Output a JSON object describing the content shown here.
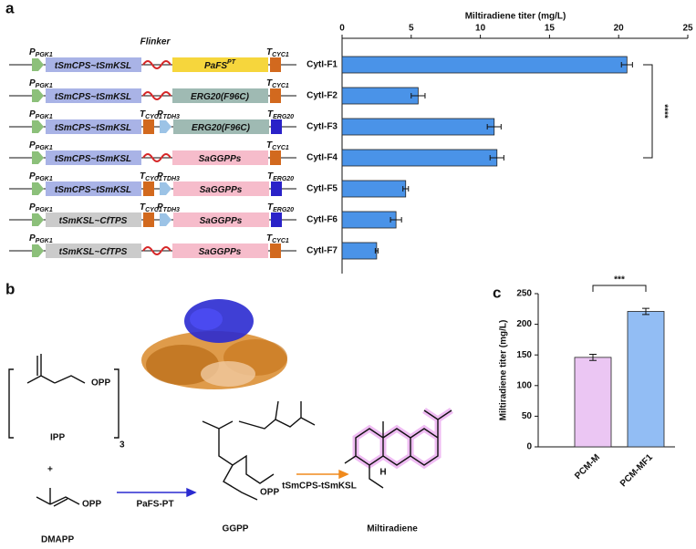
{
  "panels": {
    "a": "a",
    "b": "b",
    "c": "c"
  },
  "constructs": {
    "flinker": "Flinker",
    "rows": [
      [
        {
          "type": "promoter",
          "label": "P",
          "sub": "PGK1",
          "color": "#8cc07a"
        },
        {
          "type": "gene",
          "label": "tSmCPS~tSmKSL",
          "color": "#a9b3e6"
        },
        {
          "type": "linker",
          "color": "#d62728"
        },
        {
          "type": "gene",
          "label": "PaFS",
          "sup": "PT",
          "color": "#f6d63c"
        },
        {
          "type": "terminator",
          "label": "T",
          "sub": "CYC1",
          "color": "#d2691e"
        }
      ],
      [
        {
          "type": "promoter",
          "label": "P",
          "sub": "PGK1",
          "color": "#8cc07a"
        },
        {
          "type": "gene",
          "label": "tSmCPS~tSmKSL",
          "color": "#a9b3e6"
        },
        {
          "type": "linker",
          "color": "#d62728"
        },
        {
          "type": "gene",
          "label": "ERG20(F96C)",
          "color": "#9fbab3"
        },
        {
          "type": "terminator",
          "label": "T",
          "sub": "CYC1",
          "color": "#d2691e"
        }
      ],
      [
        {
          "type": "promoter",
          "label": "P",
          "sub": "PGK1",
          "color": "#8cc07a"
        },
        {
          "type": "gene",
          "label": "tSmCPS~tSmKSL",
          "color": "#a9b3e6"
        },
        {
          "type": "terminator",
          "label": "T",
          "sub": "CYC1",
          "color": "#d2691e"
        },
        {
          "type": "promoter",
          "label": "P",
          "sub": "TDH3",
          "color": "#9cc3e6"
        },
        {
          "type": "gene",
          "label": "ERG20(F96C)",
          "color": "#9fbab3"
        },
        {
          "type": "terminator",
          "label": "T",
          "sub": "ERG20",
          "color": "#2a22c8"
        }
      ],
      [
        {
          "type": "promoter",
          "label": "P",
          "sub": "PGK1",
          "color": "#8cc07a"
        },
        {
          "type": "gene",
          "label": "tSmCPS~tSmKSL",
          "color": "#a9b3e6"
        },
        {
          "type": "linker",
          "color": "#d62728"
        },
        {
          "type": "gene",
          "label": "SaGGPPs",
          "color": "#f6bccb"
        },
        {
          "type": "terminator",
          "label": "T",
          "sub": "CYC1",
          "color": "#d2691e"
        }
      ],
      [
        {
          "type": "promoter",
          "label": "P",
          "sub": "PGK1",
          "color": "#8cc07a"
        },
        {
          "type": "gene",
          "label": "tSmCPS~tSmKSL",
          "color": "#a9b3e6"
        },
        {
          "type": "terminator",
          "label": "T",
          "sub": "CYC1",
          "color": "#d2691e"
        },
        {
          "type": "promoter",
          "label": "P",
          "sub": "TDH3",
          "color": "#9cc3e6"
        },
        {
          "type": "gene",
          "label": "SaGGPPs",
          "color": "#f6bccb"
        },
        {
          "type": "terminator",
          "label": "T",
          "sub": "ERG20",
          "color": "#2a22c8"
        }
      ],
      [
        {
          "type": "promoter",
          "label": "P",
          "sub": "PGK1",
          "color": "#8cc07a"
        },
        {
          "type": "gene",
          "label": "tSmKSL~CfTPS",
          "color": "#cbcbcb"
        },
        {
          "type": "terminator",
          "label": "T",
          "sub": "CYC1",
          "color": "#d2691e"
        },
        {
          "type": "promoter",
          "label": "P",
          "sub": "TDH3",
          "color": "#9cc3e6"
        },
        {
          "type": "gene",
          "label": "SaGGPPs",
          "color": "#f6bccb"
        },
        {
          "type": "terminator",
          "label": "T",
          "sub": "ERG20",
          "color": "#2a22c8"
        }
      ],
      [
        {
          "type": "promoter",
          "label": "P",
          "sub": "PGK1",
          "color": "#8cc07a"
        },
        {
          "type": "gene",
          "label": "tSmKSL~CfTPS",
          "color": "#cbcbcb"
        },
        {
          "type": "linker",
          "color": "#d62728"
        },
        {
          "type": "gene",
          "label": "SaGGPPs",
          "color": "#f6bccb"
        },
        {
          "type": "terminator",
          "label": "T",
          "sub": "CYC1",
          "color": "#d2691e"
        }
      ]
    ]
  },
  "scheme": {
    "ipp": "IPP",
    "count": "3",
    "plus": "+",
    "dmapp": "DMAPP",
    "opp": "OPP",
    "enzyme1": "PaFS-PT",
    "ggpp": "GGPP",
    "enzyme2": "tSmCPS-tSmKSL",
    "h": "H",
    "product": "Miltiradiene"
  },
  "chart_data": [
    {
      "type": "hbar",
      "xlabel": "Miltiradiene titer (mg/L)",
      "categories": [
        "CytI-F1",
        "CytI-F2",
        "CytI-F3",
        "CytI-F4",
        "CytI-F5",
        "CytI-F6",
        "CytI-F7"
      ],
      "values": [
        20.6,
        5.5,
        11.0,
        11.2,
        4.6,
        3.9,
        2.5
      ],
      "errors": [
        0.4,
        0.5,
        0.5,
        0.5,
        0.2,
        0.4,
        0.1
      ],
      "color": "#4a93e8",
      "xlim": [
        0,
        25
      ],
      "xticks": [
        0,
        5,
        10,
        15,
        20,
        25
      ],
      "significance": "****"
    },
    {
      "type": "bar",
      "ylabel": "Miltiradiene titer (mg/L)",
      "categories": [
        "PCM-M",
        "PCM-MF1"
      ],
      "values": [
        146,
        221
      ],
      "errors": [
        5,
        5
      ],
      "colors": [
        "#ebc6f3",
        "#92bdf4"
      ],
      "ylim": [
        0,
        250
      ],
      "yticks": [
        0,
        50,
        100,
        150,
        200,
        250
      ],
      "significance": "***"
    }
  ]
}
